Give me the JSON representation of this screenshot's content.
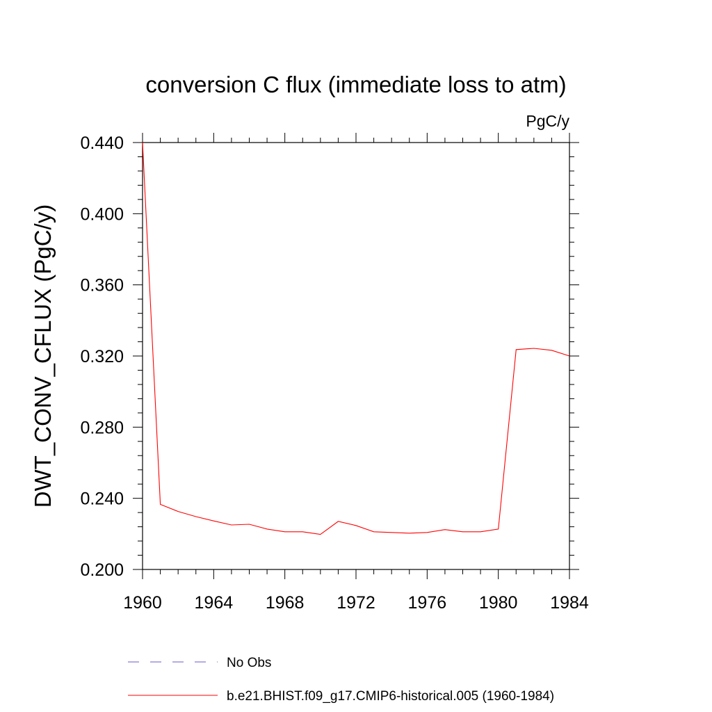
{
  "chart_data": {
    "type": "line",
    "title": "conversion C flux (immediate loss to atm)",
    "units": "PgC/y",
    "xlabel": "",
    "ylabel": "DWT_CONV_CFLUX  (PgC/y)",
    "xlim": [
      1960,
      1984
    ],
    "ylim": [
      0.2,
      0.44
    ],
    "xticks": [
      1960,
      1964,
      1968,
      1972,
      1976,
      1980,
      1984
    ],
    "xtick_labels": [
      "1960",
      "1964",
      "1968",
      "1972",
      "1976",
      "1980",
      "1984"
    ],
    "yticks": [
      0.2,
      0.24,
      0.28,
      0.32,
      0.36,
      0.4,
      0.44
    ],
    "ytick_labels": [
      "0.200",
      "0.240",
      "0.280",
      "0.320",
      "0.360",
      "0.400",
      "0.440"
    ],
    "grid": false,
    "legend_position": "bottom",
    "series": [
      {
        "name": "b.e21.BHIST.f09_g17.CMIP6-historical.005 (1960-1984)",
        "color": "#ff0000",
        "style": "solid",
        "x": [
          1960,
          1961,
          1962,
          1963,
          1964,
          1965,
          1966,
          1967,
          1968,
          1969,
          1970,
          1971,
          1972,
          1973,
          1974,
          1975,
          1976,
          1977,
          1978,
          1979,
          1980,
          1981,
          1982,
          1983,
          1984
        ],
        "y": [
          0.44,
          0.2366,
          0.2326,
          0.2297,
          0.2273,
          0.225,
          0.2254,
          0.2227,
          0.2212,
          0.2212,
          0.2197,
          0.227,
          0.2247,
          0.2212,
          0.2208,
          0.2204,
          0.2208,
          0.2224,
          0.2212,
          0.2212,
          0.2227,
          0.3236,
          0.3243,
          0.3232,
          0.32
        ]
      }
    ],
    "legend": [
      {
        "label": "No Obs",
        "color": "#6a5acd",
        "style": "dashed"
      },
      {
        "label": "b.e21.BHIST.f09_g17.CMIP6-historical.005 (1960-1984)",
        "color": "#ff0000",
        "style": "solid"
      }
    ]
  }
}
